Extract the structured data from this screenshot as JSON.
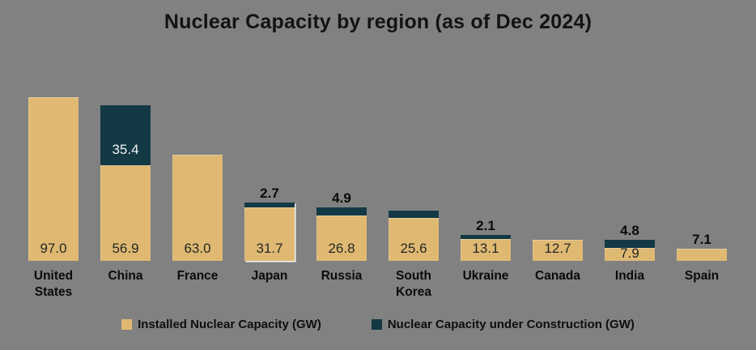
{
  "chart_data": {
    "type": "bar",
    "stacked": true,
    "title": "Nuclear Capacity by region (as of Dec 2024)",
    "unit": "GW",
    "grid": false,
    "axes_visible": false,
    "legend_position": "bottom",
    "background_color": "#818181",
    "categories": [
      "United States",
      "China",
      "France",
      "Japan",
      "Russia",
      "South Korea",
      "Ukraine",
      "Canada",
      "India",
      "Spain"
    ],
    "series": [
      {
        "name": "Installed Nuclear Capacity (GW)",
        "color": "#DFB972",
        "values": [
          97.0,
          56.9,
          63.0,
          31.7,
          26.8,
          25.6,
          13.1,
          12.7,
          7.9,
          7.1
        ]
      },
      {
        "name": "Nuclear Capacity under Construction (GW)",
        "color": "#133945",
        "values": [
          0,
          35.4,
          0,
          2.7,
          4.9,
          4.0,
          2.1,
          0,
          4.8,
          0
        ]
      }
    ],
    "bars": [
      {
        "category": "United States",
        "installed": 97.0,
        "installed_label": "97.0",
        "installed_label_position": "inside",
        "construction": 0,
        "construction_label": "",
        "construction_label_position": "none",
        "highlighted": false
      },
      {
        "category": "China",
        "installed": 56.9,
        "installed_label": "56.9",
        "installed_label_position": "inside",
        "construction": 35.4,
        "construction_label": "35.4",
        "construction_label_position": "inside",
        "highlighted": false
      },
      {
        "category": "France",
        "installed": 63.0,
        "installed_label": "63.0",
        "installed_label_position": "inside",
        "construction": 0,
        "construction_label": "",
        "construction_label_position": "none",
        "highlighted": false
      },
      {
        "category": "Japan",
        "installed": 31.7,
        "installed_label": "31.7",
        "installed_label_position": "inside",
        "construction": 2.7,
        "construction_label": "2.7",
        "construction_label_position": "above",
        "highlighted": true
      },
      {
        "category": "Russia",
        "installed": 26.8,
        "installed_label": "26.8",
        "installed_label_position": "inside",
        "construction": 4.9,
        "construction_label": "4.9",
        "construction_label_position": "above",
        "highlighted": false
      },
      {
        "category": "South Korea",
        "installed": 25.6,
        "installed_label": "25.6",
        "installed_label_position": "inside",
        "construction": 4.0,
        "construction_label": "",
        "construction_label_position": "none",
        "highlighted": false
      },
      {
        "category": "Ukraine",
        "installed": 13.1,
        "installed_label": "13.1",
        "installed_label_position": "inside",
        "construction": 2.1,
        "construction_label": "2.1",
        "construction_label_position": "above",
        "highlighted": false
      },
      {
        "category": "Canada",
        "installed": 12.7,
        "installed_label": "12.7",
        "installed_label_position": "inside",
        "construction": 0,
        "construction_label": "",
        "construction_label_position": "none",
        "highlighted": false
      },
      {
        "category": "India",
        "installed": 7.9,
        "installed_label": "7.9",
        "installed_label_position": "inside",
        "construction": 4.8,
        "construction_label": "4.8",
        "construction_label_position": "above",
        "highlighted": false
      },
      {
        "category": "Spain",
        "installed": 7.1,
        "installed_label": "7.1",
        "installed_label_position": "above",
        "construction": 0,
        "construction_label": "",
        "construction_label_position": "none",
        "highlighted": false
      }
    ]
  }
}
